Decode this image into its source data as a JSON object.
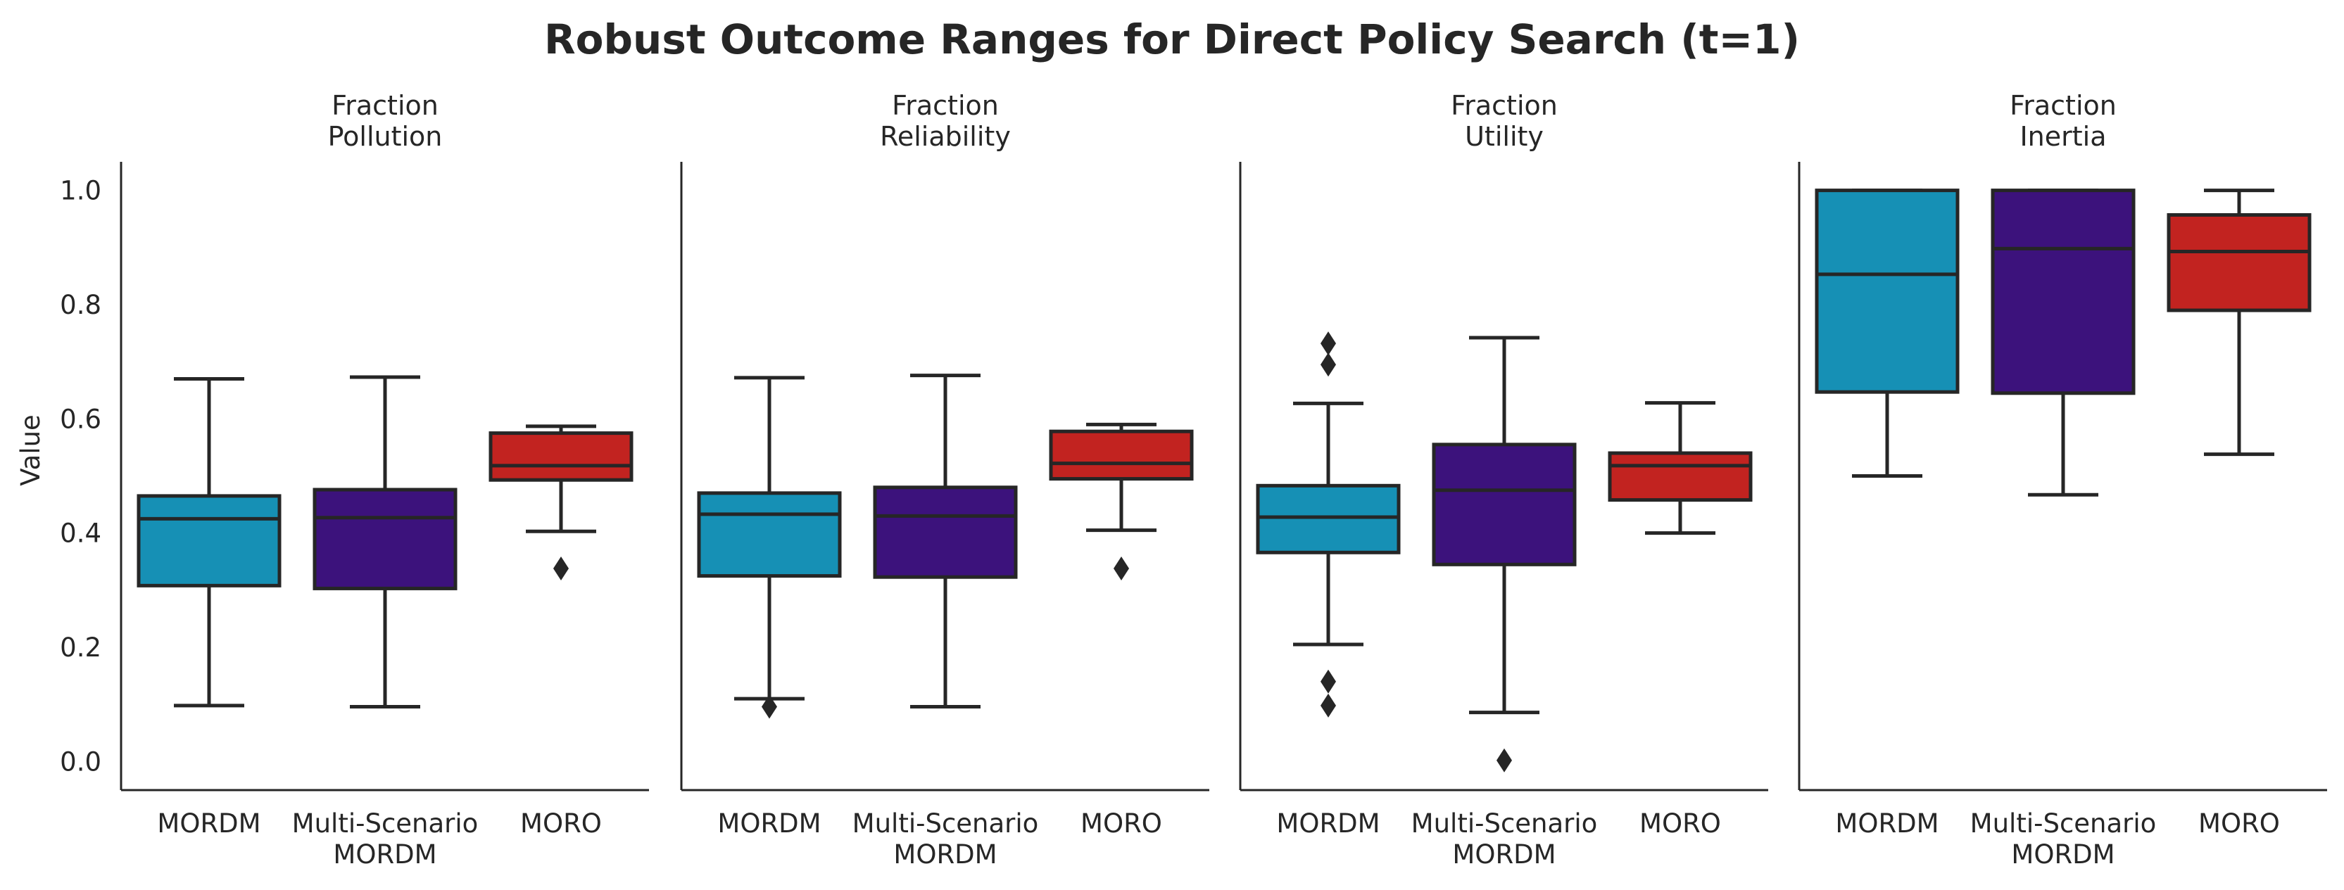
{
  "title": "Robust Outcome Ranges for Direct Policy Search (t=1)",
  "ylabel": "Value",
  "colors": {
    "MORDM": "#1690b5",
    "Multi-Scenario MORDM": "#3c127c",
    "MORO": "#c22320",
    "line": "#262626"
  },
  "chart_data": {
    "type": "box",
    "title": "Robust Outcome Ranges for Direct Policy Search (t=1)",
    "ylabel": "Value",
    "ylim": [
      -0.05,
      1.05
    ],
    "yticks": [
      "0.0",
      "0.2",
      "0.4",
      "0.6",
      "0.8",
      "1.0"
    ],
    "grid": false,
    "categories": [
      [
        "MORDM"
      ],
      [
        "Multi-Scenario",
        "MORDM"
      ],
      [
        "MORO"
      ]
    ],
    "panels": [
      {
        "title": [
          "Fraction",
          "Pollution"
        ],
        "boxes": [
          {
            "name": "MORDM",
            "whisker_low": 0.098,
            "q1": 0.308,
            "median": 0.425,
            "q3": 0.465,
            "whisker_high": 0.67,
            "outliers": []
          },
          {
            "name": "Multi-Scenario MORDM",
            "whisker_low": 0.096,
            "q1": 0.303,
            "median": 0.427,
            "q3": 0.476,
            "whisker_high": 0.673,
            "outliers": []
          },
          {
            "name": "MORO",
            "whisker_low": 0.403,
            "q1": 0.493,
            "median": 0.518,
            "q3": 0.575,
            "whisker_high": 0.587,
            "outliers": [
              0.338
            ]
          }
        ]
      },
      {
        "title": [
          "Fraction",
          "Reliability"
        ],
        "boxes": [
          {
            "name": "MORDM",
            "whisker_low": 0.11,
            "q1": 0.325,
            "median": 0.433,
            "q3": 0.47,
            "whisker_high": 0.672,
            "outliers": [
              0.096
            ]
          },
          {
            "name": "Multi-Scenario MORDM",
            "whisker_low": 0.096,
            "q1": 0.323,
            "median": 0.43,
            "q3": 0.48,
            "whisker_high": 0.676,
            "outliers": []
          },
          {
            "name": "MORO",
            "whisker_low": 0.405,
            "q1": 0.495,
            "median": 0.522,
            "q3": 0.578,
            "whisker_high": 0.59,
            "outliers": [
              0.338
            ]
          }
        ]
      },
      {
        "title": [
          "Fraction",
          "Utility"
        ],
        "boxes": [
          {
            "name": "MORDM",
            "whisker_low": 0.205,
            "q1": 0.366,
            "median": 0.428,
            "q3": 0.483,
            "whisker_high": 0.627,
            "outliers": [
              0.732,
              0.695,
              0.14,
              0.098
            ]
          },
          {
            "name": "Multi-Scenario MORDM",
            "whisker_low": 0.086,
            "q1": 0.345,
            "median": 0.475,
            "q3": 0.555,
            "whisker_high": 0.742,
            "outliers": [
              0.002
            ]
          },
          {
            "name": "MORO",
            "whisker_low": 0.4,
            "q1": 0.458,
            "median": 0.518,
            "q3": 0.54,
            "whisker_high": 0.628,
            "outliers": []
          }
        ]
      },
      {
        "title": [
          "Fraction",
          "Inertia"
        ],
        "boxes": [
          {
            "name": "MORDM",
            "whisker_low": 0.5,
            "q1": 0.647,
            "median": 0.853,
            "q3": 1.0,
            "whisker_high": 1.0,
            "outliers": []
          },
          {
            "name": "Multi-Scenario MORDM",
            "whisker_low": 0.467,
            "q1": 0.645,
            "median": 0.898,
            "q3": 1.0,
            "whisker_high": 1.0,
            "outliers": []
          },
          {
            "name": "MORO",
            "whisker_low": 0.538,
            "q1": 0.79,
            "median": 0.893,
            "q3": 0.957,
            "whisker_high": 1.0,
            "outliers": []
          }
        ]
      }
    ]
  }
}
